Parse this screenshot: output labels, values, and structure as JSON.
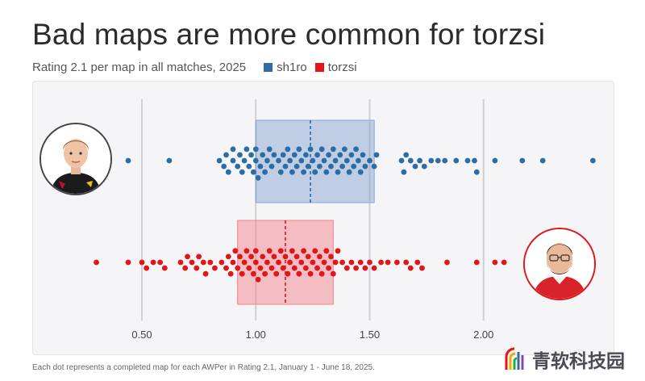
{
  "header": {
    "title": "Bad maps are more common for torzsi",
    "subtitle": "Rating 2.1 per map in all matches, 2025"
  },
  "legend": [
    {
      "name": "sh1ro",
      "color": "#2e6da4"
    },
    {
      "name": "torzsi",
      "color": "#e0161b"
    }
  ],
  "footnote": "Each dot represents a completed map for each AWPer in Rating 2.1, January 1 - June 18, 2025.",
  "watermark": {
    "text": "青软科技园",
    "icon": "rainbow-arc-logo-icon"
  },
  "avatars": [
    {
      "name": "sh1ro",
      "icon": "player-photo-icon",
      "ring_color": "#444444"
    },
    {
      "name": "torzsi",
      "icon": "player-photo-icon",
      "ring_color": "#e0161b"
    }
  ],
  "chart_data": {
    "type": "beeswarm-box",
    "title": "Bad maps are more common for torzsi",
    "subtitle": "Rating 2.1 per map in all matches, 2025",
    "xlabel": "",
    "ylabel": "",
    "xlim": [
      0.05,
      2.3
    ],
    "xticks": [
      0.5,
      1.0,
      1.5,
      2.0
    ],
    "xtick_labels": [
      "0.50",
      "1.00",
      "1.50",
      "2.00"
    ],
    "grid": true,
    "legend_placement": "top-left inline with subtitle",
    "series": [
      {
        "name": "sh1ro",
        "color": "#2e6da4",
        "box": {
          "q1": 1.0,
          "median": 1.24,
          "q3": 1.52
        },
        "values": [
          0.44,
          0.62,
          0.84,
          0.86,
          0.87,
          0.88,
          0.9,
          0.9,
          0.92,
          0.93,
          0.94,
          0.95,
          0.96,
          0.97,
          0.98,
          0.99,
          1.0,
          1.0,
          1.01,
          1.02,
          1.03,
          1.04,
          1.05,
          1.06,
          1.07,
          1.08,
          1.1,
          1.11,
          1.12,
          1.13,
          1.14,
          1.15,
          1.16,
          1.17,
          1.18,
          1.19,
          1.2,
          1.21,
          1.22,
          1.23,
          1.24,
          1.25,
          1.26,
          1.27,
          1.28,
          1.29,
          1.3,
          1.31,
          1.32,
          1.33,
          1.34,
          1.35,
          1.36,
          1.37,
          1.38,
          1.39,
          1.4,
          1.41,
          1.42,
          1.43,
          1.44,
          1.45,
          1.46,
          1.47,
          1.48,
          1.5,
          1.52,
          1.53,
          1.64,
          1.65,
          1.66,
          1.68,
          1.7,
          1.72,
          1.74,
          1.77,
          1.8,
          1.83,
          1.88,
          1.93,
          1.96,
          1.97,
          2.05,
          2.17,
          2.26,
          2.48
        ]
      },
      {
        "name": "torzsi",
        "color": "#e0161b",
        "box": {
          "q1": 0.92,
          "median": 1.13,
          "q3": 1.34
        },
        "values": [
          0.3,
          0.44,
          0.5,
          0.52,
          0.55,
          0.58,
          0.6,
          0.67,
          0.69,
          0.7,
          0.72,
          0.74,
          0.75,
          0.77,
          0.78,
          0.8,
          0.82,
          0.85,
          0.87,
          0.88,
          0.89,
          0.9,
          0.91,
          0.92,
          0.93,
          0.94,
          0.95,
          0.96,
          0.97,
          0.98,
          0.99,
          1.0,
          1.0,
          1.01,
          1.02,
          1.03,
          1.04,
          1.05,
          1.06,
          1.07,
          1.08,
          1.09,
          1.1,
          1.11,
          1.12,
          1.13,
          1.14,
          1.15,
          1.16,
          1.17,
          1.18,
          1.19,
          1.2,
          1.21,
          1.22,
          1.23,
          1.24,
          1.25,
          1.26,
          1.27,
          1.28,
          1.29,
          1.3,
          1.31,
          1.32,
          1.33,
          1.34,
          1.35,
          1.36,
          1.38,
          1.4,
          1.42,
          1.44,
          1.46,
          1.48,
          1.5,
          1.52,
          1.55,
          1.58,
          1.62,
          1.66,
          1.68,
          1.71,
          1.73,
          1.84,
          1.97,
          2.05,
          2.09
        ]
      }
    ]
  }
}
